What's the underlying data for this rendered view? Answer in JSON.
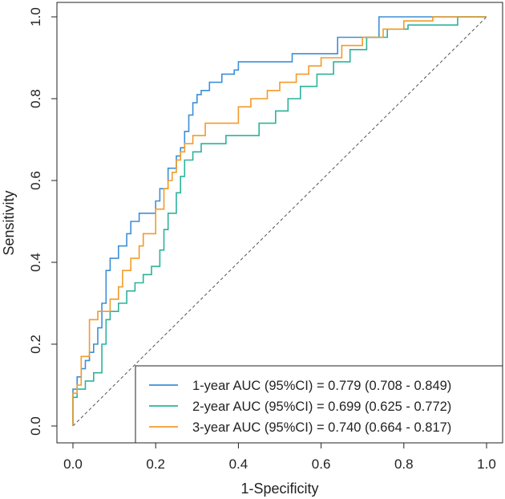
{
  "chart_data": {
    "type": "line",
    "title": "",
    "xlabel": "1-Specificity",
    "ylabel": "Sensitivity",
    "xlim": [
      0,
      1
    ],
    "ylim": [
      0,
      1
    ],
    "xticks": [
      "0.0",
      "0.2",
      "0.4",
      "0.6",
      "0.8",
      "1.0"
    ],
    "yticks": [
      "0.0",
      "0.2",
      "0.4",
      "0.6",
      "0.8",
      "1.0"
    ],
    "grid": false,
    "legend_position": "bottom-right",
    "reference_line": {
      "from": [
        0,
        0
      ],
      "to": [
        1,
        1
      ],
      "style": "dashed"
    },
    "series": [
      {
        "name": "1-year",
        "legend": "1-year AUC (95%CI) = 0.779 (0.708 - 0.849)",
        "color": "#3c8fd8",
        "x": [
          0,
          0,
          0.01,
          0.01,
          0.02,
          0.02,
          0.03,
          0.03,
          0.04,
          0.04,
          0.05,
          0.05,
          0.06,
          0.06,
          0.07,
          0.07,
          0.08,
          0.08,
          0.09,
          0.09,
          0.11,
          0.11,
          0.13,
          0.13,
          0.14,
          0.14,
          0.16,
          0.16,
          0.2,
          0.2,
          0.21,
          0.21,
          0.23,
          0.23,
          0.25,
          0.25,
          0.26,
          0.26,
          0.27,
          0.27,
          0.28,
          0.28,
          0.29,
          0.29,
          0.3,
          0.3,
          0.31,
          0.31,
          0.33,
          0.33,
          0.36,
          0.36,
          0.39,
          0.39,
          0.4,
          0.4,
          0.53,
          0.53,
          0.64,
          0.64,
          0.74,
          0.74,
          0.92,
          0.92,
          1
        ],
        "y": [
          0,
          0.09,
          0.09,
          0.12,
          0.12,
          0.14,
          0.14,
          0.16,
          0.16,
          0.18,
          0.18,
          0.2,
          0.2,
          0.24,
          0.24,
          0.3,
          0.3,
          0.38,
          0.38,
          0.41,
          0.41,
          0.44,
          0.44,
          0.47,
          0.47,
          0.5,
          0.5,
          0.52,
          0.52,
          0.55,
          0.55,
          0.58,
          0.58,
          0.63,
          0.63,
          0.66,
          0.66,
          0.68,
          0.68,
          0.72,
          0.72,
          0.76,
          0.76,
          0.79,
          0.79,
          0.81,
          0.81,
          0.82,
          0.82,
          0.84,
          0.84,
          0.86,
          0.86,
          0.87,
          0.87,
          0.89,
          0.89,
          0.91,
          0.91,
          0.95,
          0.95,
          1.0,
          1.0,
          1.0,
          1.0
        ]
      },
      {
        "name": "2-year",
        "legend": "2-year AUC (95%CI) = 0.699 (0.625 - 0.772)",
        "color": "#2bb39a",
        "x": [
          0,
          0,
          0.01,
          0.01,
          0.03,
          0.03,
          0.05,
          0.05,
          0.07,
          0.07,
          0.08,
          0.08,
          0.09,
          0.09,
          0.11,
          0.11,
          0.13,
          0.13,
          0.15,
          0.15,
          0.17,
          0.17,
          0.19,
          0.19,
          0.21,
          0.21,
          0.22,
          0.22,
          0.23,
          0.23,
          0.25,
          0.25,
          0.26,
          0.26,
          0.27,
          0.27,
          0.29,
          0.29,
          0.31,
          0.31,
          0.37,
          0.37,
          0.45,
          0.45,
          0.49,
          0.49,
          0.52,
          0.52,
          0.55,
          0.55,
          0.59,
          0.59,
          0.63,
          0.63,
          0.67,
          0.67,
          0.71,
          0.71,
          0.76,
          0.76,
          0.81,
          0.81,
          0.93,
          0.93,
          1
        ],
        "y": [
          0,
          0.07,
          0.07,
          0.09,
          0.09,
          0.11,
          0.11,
          0.13,
          0.13,
          0.2,
          0.2,
          0.26,
          0.26,
          0.28,
          0.28,
          0.3,
          0.3,
          0.33,
          0.33,
          0.35,
          0.35,
          0.37,
          0.37,
          0.39,
          0.39,
          0.43,
          0.43,
          0.48,
          0.48,
          0.52,
          0.52,
          0.57,
          0.57,
          0.61,
          0.61,
          0.65,
          0.65,
          0.67,
          0.67,
          0.69,
          0.69,
          0.71,
          0.71,
          0.74,
          0.74,
          0.77,
          0.77,
          0.8,
          0.8,
          0.83,
          0.83,
          0.86,
          0.86,
          0.89,
          0.89,
          0.92,
          0.92,
          0.95,
          0.95,
          0.97,
          0.97,
          0.98,
          0.98,
          1.0,
          1.0
        ]
      },
      {
        "name": "3-year",
        "legend": "3-year AUC (95%CI) = 0.740 (0.664 - 0.817)",
        "color": "#f29b2b",
        "x": [
          0,
          0,
          0.01,
          0.01,
          0.02,
          0.02,
          0.04,
          0.04,
          0.06,
          0.06,
          0.09,
          0.09,
          0.11,
          0.11,
          0.12,
          0.12,
          0.14,
          0.14,
          0.16,
          0.16,
          0.17,
          0.17,
          0.2,
          0.2,
          0.22,
          0.22,
          0.23,
          0.23,
          0.24,
          0.24,
          0.25,
          0.25,
          0.26,
          0.26,
          0.27,
          0.27,
          0.29,
          0.29,
          0.32,
          0.32,
          0.4,
          0.4,
          0.43,
          0.43,
          0.47,
          0.47,
          0.5,
          0.5,
          0.54,
          0.54,
          0.57,
          0.57,
          0.6,
          0.6,
          0.65,
          0.65,
          0.7,
          0.7,
          0.75,
          0.75,
          0.8,
          0.8,
          0.87,
          0.87,
          1
        ],
        "y": [
          0,
          0.08,
          0.08,
          0.1,
          0.1,
          0.17,
          0.17,
          0.26,
          0.26,
          0.28,
          0.28,
          0.31,
          0.31,
          0.34,
          0.34,
          0.38,
          0.38,
          0.41,
          0.41,
          0.44,
          0.44,
          0.47,
          0.47,
          0.53,
          0.53,
          0.58,
          0.58,
          0.6,
          0.6,
          0.62,
          0.62,
          0.65,
          0.65,
          0.67,
          0.67,
          0.69,
          0.69,
          0.71,
          0.71,
          0.74,
          0.74,
          0.78,
          0.78,
          0.8,
          0.8,
          0.82,
          0.82,
          0.84,
          0.84,
          0.86,
          0.86,
          0.88,
          0.88,
          0.9,
          0.9,
          0.93,
          0.93,
          0.95,
          0.95,
          0.97,
          0.97,
          0.99,
          0.99,
          1.0,
          1.0
        ]
      }
    ]
  }
}
